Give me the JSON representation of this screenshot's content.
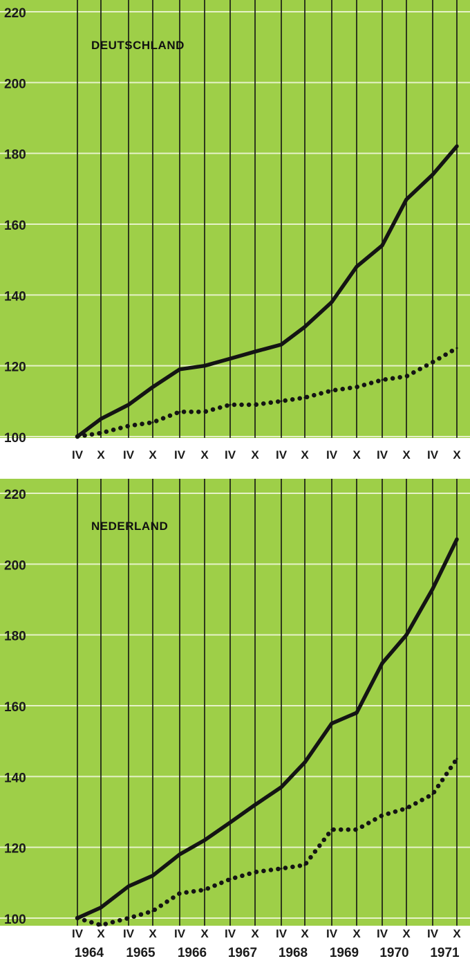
{
  "colors": {
    "panel_bg": "#9ecf48",
    "grid_line": "#e6f2c8",
    "vertical_line": "#111111",
    "series": "#141414"
  },
  "chart_data": [
    {
      "type": "line",
      "title": "DEUTSCHLAND",
      "ylim": [
        100,
        220
      ],
      "y_ticks": [
        100,
        120,
        140,
        160,
        180,
        200,
        220
      ],
      "x": [
        "IV",
        "X",
        "IV",
        "X",
        "IV",
        "X",
        "IV",
        "X",
        "IV",
        "X",
        "IV",
        "X",
        "IV",
        "X",
        "IV",
        "X"
      ],
      "grid": true,
      "series": [
        {
          "style": "solid",
          "values": [
            100,
            105,
            109,
            114,
            119,
            120,
            122,
            124,
            126,
            131,
            138,
            148,
            154,
            167,
            174,
            182
          ]
        },
        {
          "style": "dotted",
          "values": [
            100,
            101,
            103,
            104,
            107,
            107,
            109,
            109,
            110,
            111,
            113,
            114,
            116,
            117,
            121,
            125
          ]
        }
      ]
    },
    {
      "type": "line",
      "title": "NEDERLAND",
      "ylim": [
        100,
        220
      ],
      "y_ticks": [
        100,
        120,
        140,
        160,
        180,
        200,
        220
      ],
      "x": [
        "IV",
        "X",
        "IV",
        "X",
        "IV",
        "X",
        "IV",
        "X",
        "IV",
        "X",
        "IV",
        "X",
        "IV",
        "X",
        "IV",
        "X"
      ],
      "x_groups": [
        "1964",
        "1965",
        "1966",
        "1967",
        "1968",
        "1969",
        "1970",
        "1971"
      ],
      "grid": true,
      "series": [
        {
          "style": "solid",
          "values": [
            100,
            103,
            109,
            112,
            118,
            122,
            127,
            132,
            137,
            144,
            155,
            158,
            172,
            180,
            193,
            207
          ]
        },
        {
          "style": "dotted",
          "values": [
            100,
            98,
            100,
            102,
            107,
            108,
            111,
            113,
            114,
            115,
            125,
            125,
            129,
            131,
            135,
            145
          ]
        }
      ]
    }
  ]
}
